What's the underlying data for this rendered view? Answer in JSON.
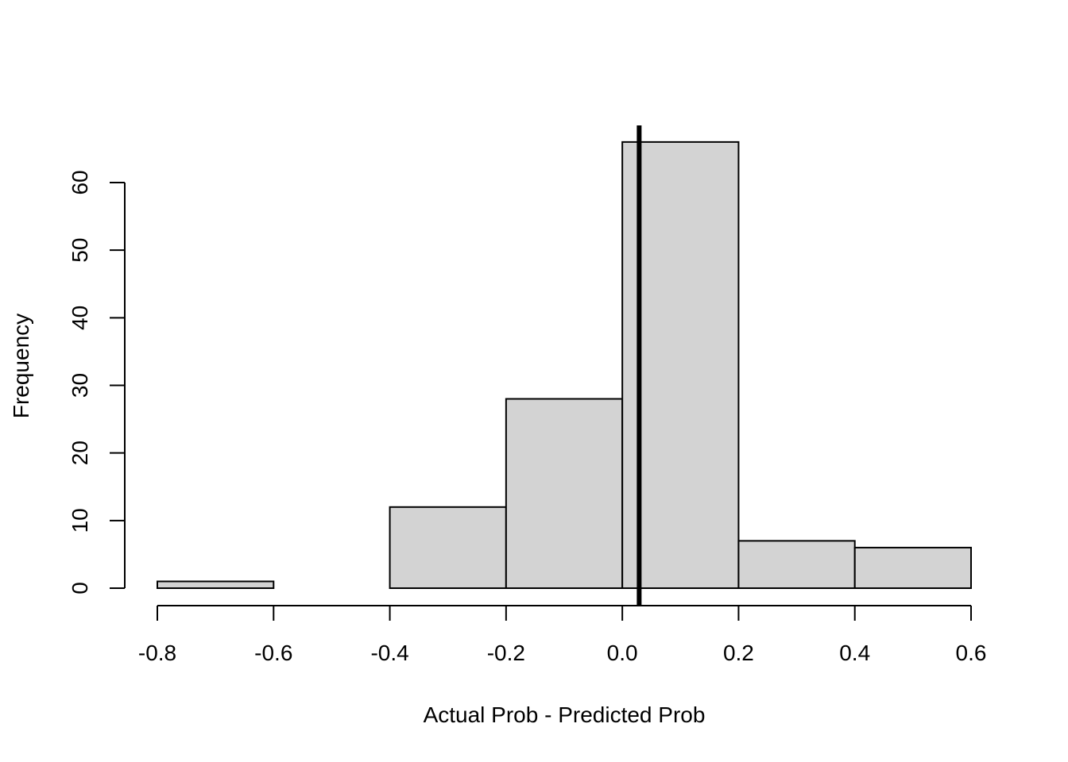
{
  "chart_data": {
    "type": "bar",
    "subtype": "histogram",
    "title": "",
    "xlabel": "Actual Prob - Predicted Prob",
    "ylabel": "Frequency",
    "bin_edges": [
      -0.8,
      -0.6,
      -0.4,
      -0.2,
      0.0,
      0.2,
      0.4,
      0.6
    ],
    "values": [
      1,
      0,
      12,
      28,
      66,
      7,
      6
    ],
    "xlim": [
      -0.8,
      0.6
    ],
    "ylim": [
      0,
      66
    ],
    "xticks": [
      -0.8,
      -0.6,
      -0.4,
      -0.2,
      0.0,
      0.2,
      0.4,
      0.6
    ],
    "xtick_labels": [
      "-0.8",
      "-0.6",
      "-0.4",
      "-0.2",
      "0.0",
      "0.2",
      "0.4",
      "0.6"
    ],
    "yticks": [
      0,
      10,
      20,
      30,
      40,
      50,
      60
    ],
    "ytick_labels": [
      "0",
      "10",
      "20",
      "30",
      "40",
      "50",
      "60"
    ],
    "vline": {
      "x": 0.029,
      "color": "#000000"
    },
    "bar_fill": "#d3d3d3",
    "bar_stroke": "#000000",
    "grid": false
  }
}
